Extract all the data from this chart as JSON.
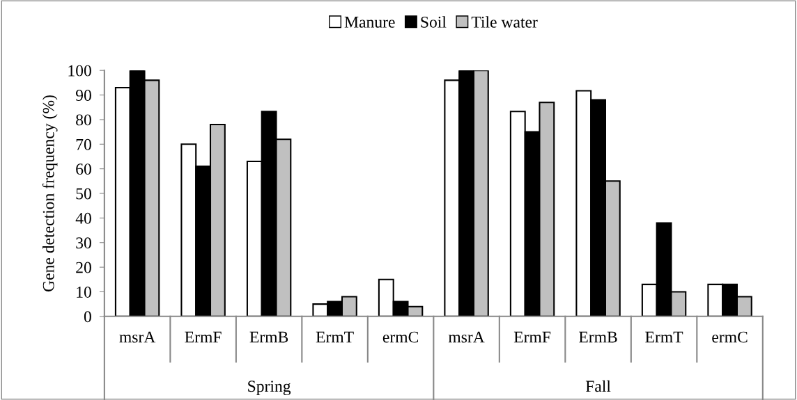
{
  "chart_data": {
    "type": "bar",
    "ylabel": "Gene detection frequency (%)",
    "categories": [
      "msrA",
      "ErmF",
      "ErmB",
      "ErmT",
      "ermC",
      "msrA",
      "ErmF",
      "ErmB",
      "ErmT",
      "ermC"
    ],
    "series": [
      {
        "name": "Manure",
        "color": "#ffffff",
        "values": [
          93,
          70,
          63,
          5,
          15,
          96,
          83.3,
          91.7,
          13,
          13
        ]
      },
      {
        "name": "Soil",
        "color": "#000000",
        "values": [
          100,
          61,
          83.3,
          6,
          6,
          100,
          75,
          88,
          38,
          13
        ]
      },
      {
        "name": "Tile water",
        "color": "#c0c0c0",
        "values": [
          96,
          78,
          72,
          8,
          4,
          100,
          87,
          55,
          10,
          8
        ]
      }
    ],
    "annotations": [
      "Spring",
      "Fall"
    ],
    "ylim": [
      0,
      100
    ],
    "yticks": [
      0,
      10,
      20,
      30,
      40,
      50,
      60,
      70,
      80,
      90,
      100
    ],
    "grid": false,
    "legend": "top"
  }
}
